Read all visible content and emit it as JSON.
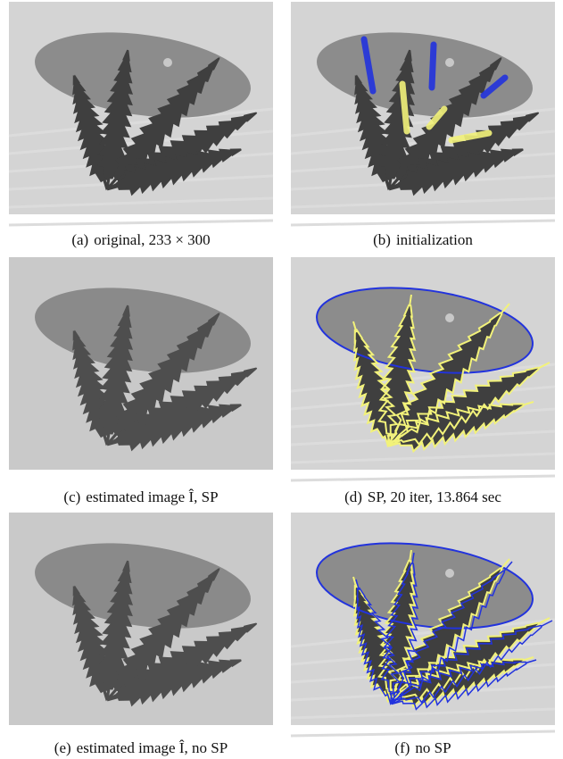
{
  "panels": [
    {
      "label": "(a)",
      "text": "original, 233 × 300"
    },
    {
      "label": "(b)",
      "text": "initialization"
    },
    {
      "label": "(c)",
      "text": "estimated image Î, SP"
    },
    {
      "label": "(d)",
      "text": "SP, 20 iter, 13.864 sec"
    },
    {
      "label": "(e)",
      "text": "estimated image Î, no SP"
    },
    {
      "label": "(f)",
      "text": "no SP"
    }
  ]
}
